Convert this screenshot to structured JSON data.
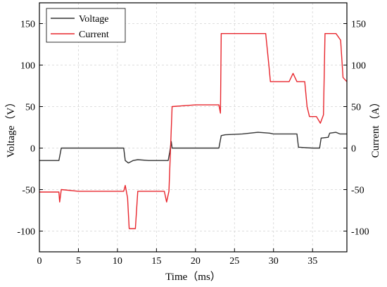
{
  "chart_data": {
    "type": "line",
    "xlabel": "Time（ms）",
    "ylabel_left": "Voltage（V）",
    "ylabel_right": "Current（A）",
    "xlim": [
      0,
      39.4
    ],
    "ylim_left": [
      -125,
      175
    ],
    "ylim_right": [
      -125,
      175
    ],
    "x_ticks": [
      0,
      5,
      10,
      15,
      20,
      25,
      30,
      35
    ],
    "y_ticks_left": [
      -100,
      -50,
      0,
      50,
      100,
      150
    ],
    "y_ticks_right": [
      -100,
      -50,
      0,
      50,
      100,
      150
    ],
    "x_tick_labels": [
      "0",
      "5",
      "10",
      "15",
      "20",
      "25",
      "30",
      "35"
    ],
    "y_tick_labels_left": [
      "-100",
      "-50",
      "0",
      "50",
      "100",
      "150"
    ],
    "y_tick_labels_right": [
      "-100",
      "-50",
      "0",
      "50",
      "100",
      "150"
    ],
    "grid": true,
    "legend_position": "top-left",
    "series": [
      {
        "name": "Voltage",
        "color": "#333333",
        "axis": "left",
        "x": [
          0,
          2.5,
          2.8,
          6,
          8,
          10.8,
          11.0,
          11.4,
          12.0,
          12.6,
          14,
          16.5,
          16.7,
          16.9,
          17.0,
          20,
          23.0,
          23.3,
          23.8,
          26,
          28,
          29.5,
          30,
          33.0,
          33.2,
          35,
          35.9,
          36.1,
          37,
          37.2,
          38,
          38.5,
          39.4
        ],
        "values": [
          -15,
          -15,
          0,
          0,
          0,
          0,
          -15,
          -18,
          -15,
          -14,
          -15,
          -15,
          -5,
          8,
          0,
          0,
          0,
          15,
          16,
          17,
          19,
          18,
          17,
          17,
          1,
          0,
          0,
          12,
          13,
          18,
          19,
          17,
          17
        ]
      },
      {
        "name": "Current",
        "color": "#e8262d",
        "axis": "right",
        "x": [
          0,
          2.5,
          2.6,
          2.8,
          5,
          8,
          10.8,
          11.0,
          11.3,
          11.5,
          12.3,
          12.6,
          14,
          16.0,
          16.3,
          16.6,
          17.0,
          20,
          23.0,
          23.2,
          23.3,
          26,
          29.0,
          29.4,
          29.6,
          32,
          32.5,
          33.0,
          34.0,
          34.3,
          34.6,
          35.5,
          36.0,
          36.4,
          36.6,
          38.0,
          38.6,
          38.9,
          39.4
        ],
        "values": [
          -53,
          -53,
          -65,
          -50,
          -52,
          -52,
          -52,
          -45,
          -60,
          -97,
          -97,
          -52,
          -52,
          -52,
          -65,
          -52,
          50,
          52,
          52,
          42,
          138,
          138,
          138,
          100,
          80,
          80,
          90,
          80,
          80,
          50,
          38,
          38,
          30,
          40,
          138,
          138,
          130,
          85,
          80
        ]
      }
    ]
  }
}
